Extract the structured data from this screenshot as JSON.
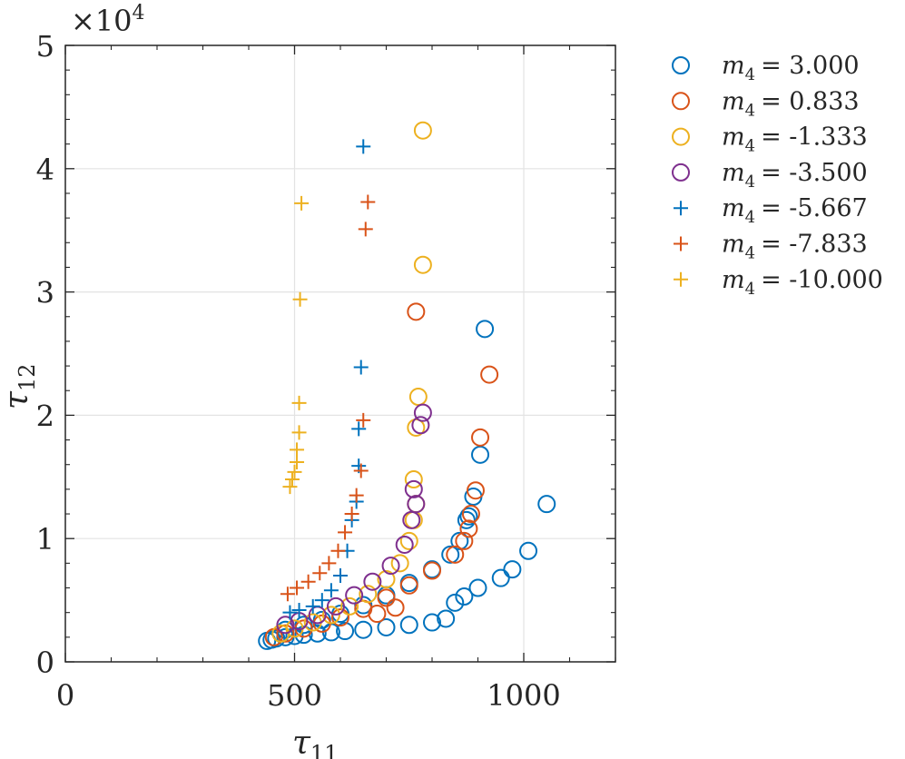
{
  "chart_data": {
    "type": "scatter",
    "title": "",
    "xlabel": "τ11",
    "xlabel_base": "τ",
    "xlabel_sub": "11",
    "ylabel": "τ12",
    "ylabel_base": "τ",
    "ylabel_sub": "12",
    "xlim": [
      0,
      1200
    ],
    "ylim": [
      0,
      50000
    ],
    "x_ticks": [
      0,
      500,
      1000
    ],
    "x_tick_labels": [
      "0",
      "500",
      "1000"
    ],
    "y_ticks": [
      0,
      10000,
      20000,
      30000,
      40000,
      50000
    ],
    "y_tick_labels": [
      "0",
      "1",
      "2",
      "3",
      "4",
      "5"
    ],
    "y_exponent_label": "×10",
    "y_exponent_power": "4",
    "grid": true,
    "legend_position": "outside-right",
    "series": [
      {
        "name": "m4 = 3.000",
        "label_lhs": "m",
        "label_sub": "4",
        "label_rhs": "= 3.000",
        "marker": "circle",
        "color": "#0072BD",
        "points": [
          [
            440,
            1700
          ],
          [
            450,
            1800
          ],
          [
            460,
            1900
          ],
          [
            480,
            2000
          ],
          [
            500,
            2100
          ],
          [
            520,
            2200
          ],
          [
            550,
            2300
          ],
          [
            580,
            2400
          ],
          [
            610,
            2500
          ],
          [
            650,
            2600
          ],
          [
            700,
            2800
          ],
          [
            750,
            3000
          ],
          [
            800,
            3200
          ],
          [
            830,
            3500
          ],
          [
            850,
            4800
          ],
          [
            870,
            5300
          ],
          [
            900,
            6000
          ],
          [
            950,
            6800
          ],
          [
            975,
            7500
          ],
          [
            1010,
            9000
          ],
          [
            1050,
            12800
          ],
          [
            480,
            2600
          ],
          [
            520,
            3000
          ],
          [
            560,
            3400
          ],
          [
            600,
            3900
          ],
          [
            650,
            4600
          ],
          [
            700,
            5400
          ],
          [
            750,
            6400
          ],
          [
            800,
            7500
          ],
          [
            840,
            8700
          ],
          [
            860,
            9800
          ],
          [
            875,
            11500
          ],
          [
            880,
            11800
          ],
          [
            890,
            13400
          ],
          [
            905,
            16800
          ],
          [
            915,
            27000
          ]
        ]
      },
      {
        "name": "m4 = 0.833",
        "label_lhs": "m",
        "label_sub": "4",
        "label_rhs": "= 0.833",
        "marker": "circle",
        "color": "#D95319",
        "points": [
          [
            455,
            2000
          ],
          [
            480,
            2300
          ],
          [
            520,
            2700
          ],
          [
            560,
            3100
          ],
          [
            600,
            3600
          ],
          [
            650,
            4300
          ],
          [
            700,
            5200
          ],
          [
            750,
            6200
          ],
          [
            800,
            7400
          ],
          [
            850,
            8700
          ],
          [
            870,
            9800
          ],
          [
            880,
            10800
          ],
          [
            885,
            12000
          ],
          [
            895,
            13900
          ],
          [
            905,
            18200
          ],
          [
            925,
            23300
          ],
          [
            765,
            28400
          ],
          [
            720,
            4400
          ],
          [
            680,
            3900
          ]
        ]
      },
      {
        "name": "m4 = -1.333",
        "label_lhs": "m",
        "label_sub": "4",
        "label_rhs": "= -1.333",
        "marker": "circle",
        "color": "#EDB120",
        "points": [
          [
            470,
            2300
          ],
          [
            500,
            2700
          ],
          [
            540,
            3200
          ],
          [
            580,
            3800
          ],
          [
            620,
            4500
          ],
          [
            660,
            5500
          ],
          [
            700,
            6700
          ],
          [
            730,
            8000
          ],
          [
            750,
            9800
          ],
          [
            760,
            11500
          ],
          [
            765,
            12800
          ],
          [
            760,
            14800
          ],
          [
            765,
            19000
          ],
          [
            770,
            21500
          ],
          [
            780,
            32200
          ],
          [
            780,
            43100
          ]
        ]
      },
      {
        "name": "m4 = -3.500",
        "label_lhs": "m",
        "label_sub": "4",
        "label_rhs": "= -3.500",
        "marker": "circle",
        "color": "#7E2F8E",
        "points": [
          [
            480,
            3000
          ],
          [
            510,
            3300
          ],
          [
            550,
            3800
          ],
          [
            590,
            4500
          ],
          [
            630,
            5400
          ],
          [
            670,
            6500
          ],
          [
            710,
            7800
          ],
          [
            740,
            9500
          ],
          [
            755,
            11500
          ],
          [
            765,
            12800
          ],
          [
            760,
            14000
          ],
          [
            775,
            19200
          ],
          [
            780,
            20200
          ]
        ]
      },
      {
        "name": "m4 = -5.667",
        "label_lhs": "m",
        "label_sub": "4",
        "label_rhs": "= -5.667",
        "marker": "plus",
        "color": "#0072BD",
        "points": [
          [
            490,
            4000
          ],
          [
            510,
            4200
          ],
          [
            540,
            4500
          ],
          [
            560,
            5000
          ],
          [
            580,
            5800
          ],
          [
            600,
            7000
          ],
          [
            615,
            9000
          ],
          [
            625,
            11500
          ],
          [
            635,
            13000
          ],
          [
            640,
            15900
          ],
          [
            640,
            18900
          ],
          [
            645,
            23900
          ],
          [
            650,
            41800
          ]
        ]
      },
      {
        "name": "m4 = -7.833",
        "label_lhs": "m",
        "label_sub": "4",
        "label_rhs": "= -7.833",
        "marker": "plus",
        "color": "#D95319",
        "points": [
          [
            485,
            5500
          ],
          [
            505,
            6000
          ],
          [
            530,
            6500
          ],
          [
            555,
            7200
          ],
          [
            575,
            8000
          ],
          [
            595,
            9000
          ],
          [
            610,
            10500
          ],
          [
            625,
            12000
          ],
          [
            635,
            13500
          ],
          [
            645,
            15500
          ],
          [
            650,
            19600
          ],
          [
            655,
            35100
          ],
          [
            660,
            37300
          ]
        ]
      },
      {
        "name": "m4 = -10.000",
        "label_lhs": "m",
        "label_sub": "4",
        "label_rhs": "= -10.000",
        "marker": "plus",
        "color": "#EDB120",
        "points": [
          [
            490,
            14200
          ],
          [
            495,
            14800
          ],
          [
            500,
            15400
          ],
          [
            505,
            16200
          ],
          [
            505,
            17200
          ],
          [
            510,
            18600
          ],
          [
            510,
            21000
          ],
          [
            512,
            29400
          ],
          [
            515,
            37200
          ]
        ]
      }
    ]
  }
}
